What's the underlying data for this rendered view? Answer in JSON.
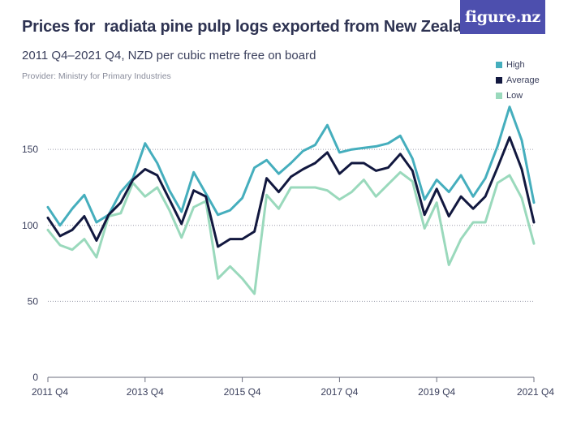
{
  "header": {
    "title": "Prices for  radiata pine pulp logs exported from New Zealand",
    "subtitle": "2011 Q4–2021 Q4, NZD per cubic metre free on board",
    "provider": "Provider: Ministry for Primary Industries"
  },
  "brand": {
    "label": "figure.nz",
    "color": "#4d4fae"
  },
  "chart_data": {
    "type": "line",
    "x": [
      "2011 Q4",
      "2012 Q1",
      "2012 Q2",
      "2012 Q3",
      "2012 Q4",
      "2013 Q1",
      "2013 Q2",
      "2013 Q3",
      "2013 Q4",
      "2014 Q1",
      "2014 Q2",
      "2014 Q3",
      "2014 Q4",
      "2015 Q1",
      "2015 Q2",
      "2015 Q3",
      "2015 Q4",
      "2016 Q1",
      "2016 Q2",
      "2016 Q3",
      "2016 Q4",
      "2017 Q1",
      "2017 Q2",
      "2017 Q3",
      "2017 Q4",
      "2018 Q1",
      "2018 Q2",
      "2018 Q3",
      "2018 Q4",
      "2019 Q1",
      "2019 Q2",
      "2019 Q3",
      "2019 Q4",
      "2020 Q1",
      "2020 Q2",
      "2020 Q3",
      "2020 Q4",
      "2021 Q1",
      "2021 Q2",
      "2021 Q3",
      "2021 Q4"
    ],
    "xticks": [
      "2011 Q4",
      "2013 Q4",
      "2015 Q4",
      "2017 Q4",
      "2019 Q4",
      "2021 Q4"
    ],
    "yticks": [
      0,
      50,
      100,
      150
    ],
    "ylim": [
      0,
      180
    ],
    "grid": true,
    "legend_position": "top-right",
    "series": [
      {
        "name": "High",
        "color": "#45aebd",
        "values": [
          112,
          100,
          111,
          120,
          102,
          107,
          122,
          131,
          154,
          141,
          123,
          109,
          135,
          121,
          107,
          110,
          118,
          138,
          143,
          134,
          141,
          149,
          153,
          166,
          148,
          150,
          151,
          152,
          154,
          159,
          144,
          117,
          130,
          122,
          133,
          119,
          131,
          152,
          178,
          156,
          115
        ]
      },
      {
        "name": "Average",
        "color": "#12183f",
        "values": [
          105,
          93,
          97,
          106,
          90,
          107,
          115,
          130,
          137,
          133,
          117,
          101,
          123,
          119,
          86,
          91,
          91,
          96,
          131,
          122,
          132,
          137,
          141,
          148,
          134,
          141,
          141,
          136,
          138,
          147,
          136,
          107,
          124,
          106,
          119,
          111,
          119,
          138,
          158,
          137,
          102
        ]
      },
      {
        "name": "Low",
        "color": "#9ad9bc",
        "values": [
          97,
          87,
          84,
          91,
          79,
          106,
          108,
          128,
          119,
          125,
          110,
          92,
          112,
          116,
          65,
          73,
          65,
          55,
          120,
          111,
          125,
          125,
          125,
          123,
          117,
          122,
          130,
          119,
          127,
          135,
          129,
          98,
          115,
          74,
          91,
          102,
          102,
          128,
          133,
          118,
          88
        ]
      }
    ]
  }
}
